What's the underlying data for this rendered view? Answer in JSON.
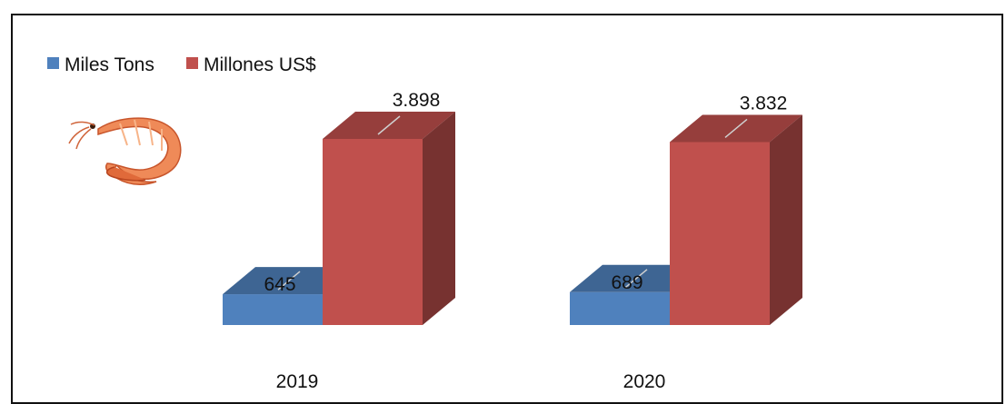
{
  "chart_data": {
    "type": "bar",
    "title": "",
    "xlabel": "",
    "ylabel": "",
    "categories": [
      "2019",
      "2020"
    ],
    "series": [
      {
        "name": "Miles Tons",
        "values": [
          645,
          689
        ],
        "value_labels": [
          "645",
          "689"
        ],
        "color": "#4f81bd"
      },
      {
        "name": "Millones US$",
        "values": [
          3898,
          3832
        ],
        "value_labels": [
          "3.898",
          "3.832"
        ],
        "color": "#c0504d"
      }
    ],
    "ylim": [
      0,
      4500
    ],
    "grid": false,
    "legend": "top-left",
    "style": "3d-clustered-column"
  },
  "decor": {
    "icon": "shrimp-icon"
  }
}
